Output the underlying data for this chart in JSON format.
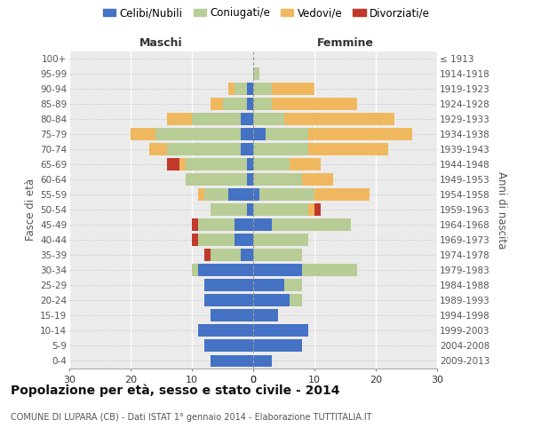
{
  "age_groups": [
    "0-4",
    "5-9",
    "10-14",
    "15-19",
    "20-24",
    "25-29",
    "30-34",
    "35-39",
    "40-44",
    "45-49",
    "50-54",
    "55-59",
    "60-64",
    "65-69",
    "70-74",
    "75-79",
    "80-84",
    "85-89",
    "90-94",
    "95-99",
    "100+"
  ],
  "birth_years": [
    "2009-2013",
    "2004-2008",
    "1999-2003",
    "1994-1998",
    "1989-1993",
    "1984-1988",
    "1979-1983",
    "1974-1978",
    "1969-1973",
    "1964-1968",
    "1959-1963",
    "1954-1958",
    "1949-1953",
    "1944-1948",
    "1939-1943",
    "1934-1938",
    "1929-1933",
    "1924-1928",
    "1919-1923",
    "1914-1918",
    "≤ 1913"
  ],
  "colors": {
    "celibe": "#4472c4",
    "coniugato": "#b8cc96",
    "vedovo": "#f0b85e",
    "divorziato": "#c0392b"
  },
  "maschi": {
    "celibe": [
      7,
      8,
      9,
      7,
      8,
      8,
      9,
      2,
      3,
      3,
      1,
      4,
      1,
      1,
      2,
      2,
      2,
      1,
      1,
      0,
      0
    ],
    "coniugato": [
      0,
      0,
      0,
      0,
      0,
      0,
      1,
      5,
      6,
      6,
      6,
      4,
      10,
      10,
      12,
      14,
      8,
      4,
      2,
      0,
      0
    ],
    "vedovo": [
      0,
      0,
      0,
      0,
      0,
      0,
      0,
      0,
      0,
      0,
      0,
      1,
      0,
      1,
      3,
      4,
      4,
      2,
      1,
      0,
      0
    ],
    "divorziato": [
      0,
      0,
      0,
      0,
      0,
      0,
      0,
      1,
      1,
      1,
      0,
      0,
      0,
      2,
      0,
      0,
      0,
      0,
      0,
      0,
      0
    ]
  },
  "femmine": {
    "celibe": [
      3,
      8,
      9,
      4,
      6,
      5,
      8,
      0,
      0,
      3,
      0,
      1,
      0,
      0,
      0,
      2,
      0,
      0,
      0,
      0,
      0
    ],
    "coniugato": [
      0,
      0,
      0,
      0,
      2,
      3,
      9,
      8,
      9,
      13,
      9,
      9,
      8,
      6,
      9,
      7,
      5,
      3,
      3,
      1,
      0
    ],
    "vedovo": [
      0,
      0,
      0,
      0,
      0,
      0,
      0,
      0,
      0,
      0,
      1,
      9,
      5,
      5,
      13,
      17,
      18,
      14,
      7,
      0,
      0
    ],
    "divorziato": [
      0,
      0,
      0,
      0,
      0,
      0,
      0,
      0,
      0,
      0,
      1,
      0,
      0,
      0,
      0,
      0,
      0,
      0,
      0,
      0,
      0
    ]
  },
  "xlim": 30,
  "title": "Popolazione per età, sesso e stato civile - 2014",
  "subtitle": "COMUNE DI LUPARA (CB) - Dati ISTAT 1° gennaio 2014 - Elaborazione TUTTITALIA.IT",
  "ylabel_left": "Fasce di età",
  "ylabel_right": "Anni di nascita",
  "legend_labels": [
    "Celibi/Nubili",
    "Coniugati/e",
    "Vedovi/e",
    "Divorziati/e"
  ],
  "bar_height": 0.82
}
